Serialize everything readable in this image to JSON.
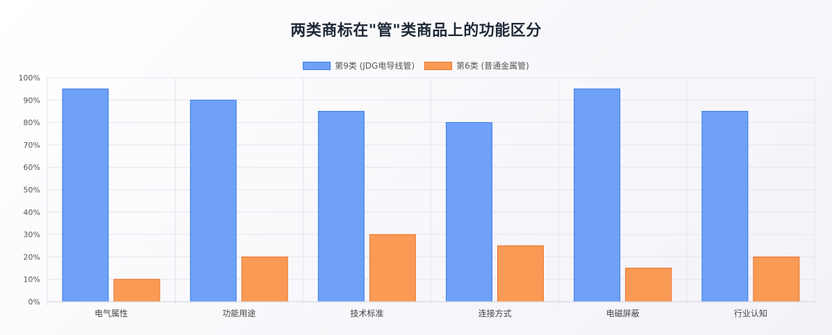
{
  "chart_data": {
    "type": "bar",
    "title": "两类商标在\"管\"类商品上的功能区分",
    "categories": [
      "电气属性",
      "功能用途",
      "技术标准",
      "连接方式",
      "电磁屏蔽",
      "行业认知"
    ],
    "series": [
      {
        "name": "第9类 (JDG电导线管)",
        "values": [
          95,
          90,
          85,
          80,
          95,
          85
        ],
        "color": "#6ea1f7",
        "border": "#3b7ae6"
      },
      {
        "name": "第6类 (普通金属管)",
        "values": [
          10,
          20,
          30,
          25,
          15,
          20
        ],
        "color": "#f99a55",
        "border": "#e9732a"
      }
    ],
    "ylim": [
      0,
      100
    ],
    "ytick_step": 10,
    "ytick_suffix": "%",
    "grid": true,
    "legend_position": "top"
  }
}
